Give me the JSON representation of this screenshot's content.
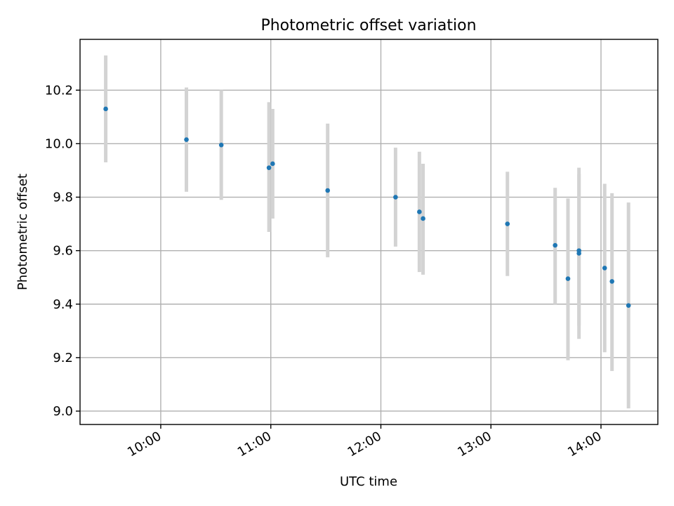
{
  "chart_data": {
    "type": "scatter",
    "title": "Photometric offset variation",
    "xlabel": "UTC time",
    "ylabel": "Photometric offset",
    "x_axis": {
      "kind": "time",
      "range": [
        "09:16",
        "14:31"
      ],
      "ticks": [
        {
          "value": "10:00",
          "label": "10:00"
        },
        {
          "value": "11:00",
          "label": "11:00"
        },
        {
          "value": "12:00",
          "label": "12:00"
        },
        {
          "value": "13:00",
          "label": "13:00"
        },
        {
          "value": "14:00",
          "label": "14:00"
        }
      ],
      "tick_label_rotation": "30 degrees"
    },
    "y_axis": {
      "range": [
        8.95,
        10.39
      ],
      "ticks": [
        {
          "value": 9.0,
          "label": "9.0"
        },
        {
          "value": 9.2,
          "label": "9.2"
        },
        {
          "value": 9.4,
          "label": "9.4"
        },
        {
          "value": 9.6,
          "label": "9.6"
        },
        {
          "value": 9.8,
          "label": "9.8"
        },
        {
          "value": 10.0,
          "label": "10.0"
        },
        {
          "value": 10.2,
          "label": "10.2"
        }
      ]
    },
    "grid": true,
    "marker_color": "#1f77b4",
    "errorbar_color": "#d3d3d3",
    "points": [
      {
        "x": "09:30",
        "y": 10.13,
        "ylow": 9.93,
        "yhigh": 10.33
      },
      {
        "x": "10:14",
        "y": 10.015,
        "ylow": 9.82,
        "yhigh": 10.21
      },
      {
        "x": "10:33",
        "y": 9.995,
        "ylow": 9.79,
        "yhigh": 10.2
      },
      {
        "x": "10:59",
        "y": 9.91,
        "ylow": 9.67,
        "yhigh": 10.155
      },
      {
        "x": "11:01",
        "y": 9.925,
        "ylow": 9.72,
        "yhigh": 10.13
      },
      {
        "x": "11:31",
        "y": 9.825,
        "ylow": 9.575,
        "yhigh": 10.075
      },
      {
        "x": "12:08",
        "y": 9.8,
        "ylow": 9.615,
        "yhigh": 9.985
      },
      {
        "x": "12:21",
        "y": 9.745,
        "ylow": 9.52,
        "yhigh": 9.97
      },
      {
        "x": "12:23",
        "y": 9.72,
        "ylow": 9.51,
        "yhigh": 9.925
      },
      {
        "x": "13:09",
        "y": 9.7,
        "ylow": 9.505,
        "yhigh": 9.895
      },
      {
        "x": "13:35",
        "y": 9.62,
        "ylow": 9.4,
        "yhigh": 9.835
      },
      {
        "x": "13:42",
        "y": 9.495,
        "ylow": 9.19,
        "yhigh": 9.795
      },
      {
        "x": "13:48",
        "y": 9.6,
        "ylow": 9.32,
        "yhigh": 9.885
      },
      {
        "x": "13:48",
        "y": 9.59,
        "ylow": 9.27,
        "yhigh": 9.91
      },
      {
        "x": "14:02",
        "y": 9.535,
        "ylow": 9.22,
        "yhigh": 9.85
      },
      {
        "x": "14:06",
        "y": 9.485,
        "ylow": 9.15,
        "yhigh": 9.815
      },
      {
        "x": "14:15",
        "y": 9.395,
        "ylow": 9.01,
        "yhigh": 9.78
      }
    ]
  }
}
